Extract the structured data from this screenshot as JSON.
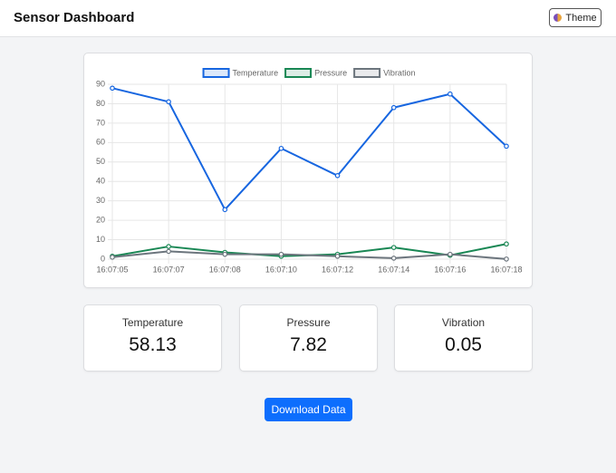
{
  "header": {
    "title": "Sensor Dashboard",
    "theme_button": "Theme"
  },
  "chart_data": {
    "type": "line",
    "categories": [
      "16:07:05",
      "16:07:07",
      "16:07:08",
      "16:07:10",
      "16:07:12",
      "16:07:14",
      "16:07:16",
      "16:07:18"
    ],
    "series": [
      {
        "name": "Temperature",
        "color": "#1766e0",
        "values": [
          88,
          81,
          25.5,
          57,
          43,
          78,
          85,
          58.13
        ]
      },
      {
        "name": "Pressure",
        "color": "#198754",
        "values": [
          1.5,
          6.5,
          3.5,
          1.5,
          2.5,
          6,
          2,
          7.82
        ]
      },
      {
        "name": "Vibration",
        "color": "#6c757d",
        "values": [
          1,
          4,
          2.5,
          2.5,
          1.5,
          0.5,
          2.5,
          0.05
        ]
      }
    ],
    "ylim": [
      0,
      90
    ],
    "yticks": [
      0,
      10,
      20,
      30,
      40,
      50,
      60,
      70,
      80,
      90
    ],
    "grid": true,
    "legend": "top"
  },
  "cards": [
    {
      "label": "Temperature",
      "value": 58.13
    },
    {
      "label": "Pressure",
      "value": 7.82
    },
    {
      "label": "Vibration",
      "value": 0.05
    }
  ],
  "button": "Download Data"
}
